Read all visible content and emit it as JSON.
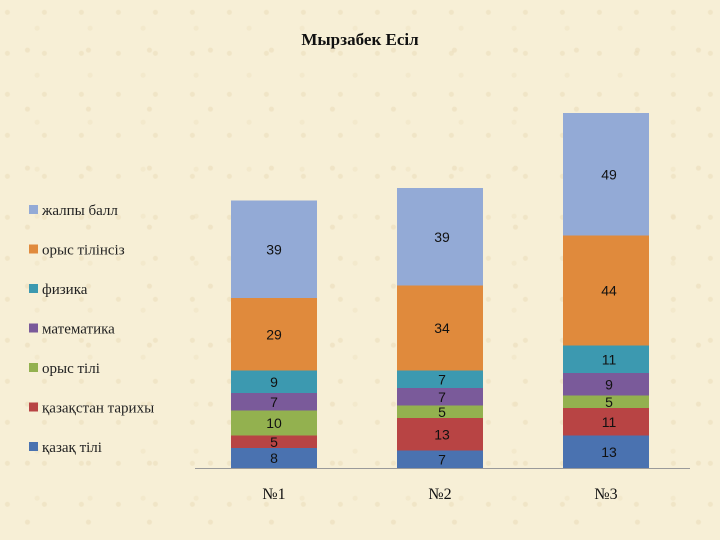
{
  "chart_data": {
    "type": "bar",
    "stacked": true,
    "title": "Мырзабек Есіл",
    "categories": [
      "№1",
      "№2",
      "№3"
    ],
    "series": [
      {
        "name": "қазақ тілі",
        "color": "#4a72b0",
        "values": [
          8,
          7,
          13
        ]
      },
      {
        "name": "қазақстан тарихы",
        "color": "#b84444",
        "values": [
          5,
          13,
          11
        ]
      },
      {
        "name": "орыс тілі",
        "color": "#93b14f",
        "values": [
          10,
          5,
          5
        ]
      },
      {
        "name": "математика",
        "color": "#7a5a9a",
        "values": [
          7,
          7,
          9
        ]
      },
      {
        "name": "физика",
        "color": "#3c99b0",
        "values": [
          9,
          7,
          11
        ]
      },
      {
        "name": "орыс тілінсіз",
        "color": "#e08a3c",
        "values": [
          29,
          34,
          44
        ]
      },
      {
        "name": "жалпы балл",
        "color": "#93aad6",
        "values": [
          39,
          39,
          49
        ]
      }
    ],
    "legend_position": "left",
    "grid": false
  }
}
